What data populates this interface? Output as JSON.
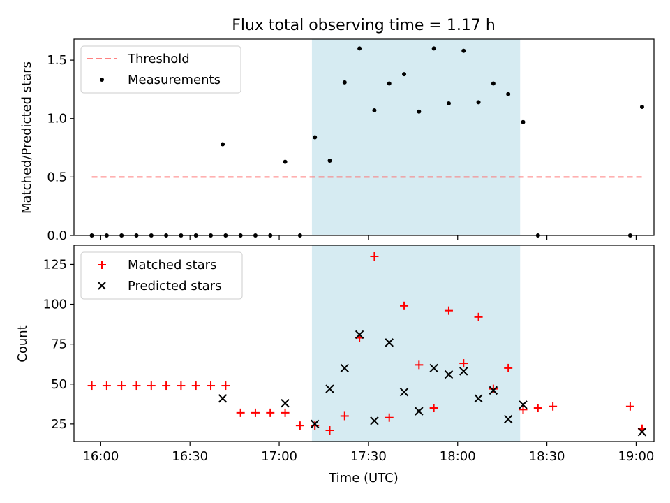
{
  "chart_data": [
    {
      "type": "scatter",
      "title": "Flux total observing time = 1.17 h",
      "ylabel": "Matched/Predicted stars",
      "xlabel": "",
      "xlim": [
        "15:51",
        "19:06"
      ],
      "ylim": [
        0,
        1.68
      ],
      "yticks": [
        0.0,
        0.5,
        1.0,
        1.5
      ],
      "ytick_labels": [
        "0.0",
        "0.5",
        "1.0",
        "1.5"
      ],
      "shaded_region": [
        "17:11",
        "18:21"
      ],
      "shaded_color": "#add8e6",
      "threshold": {
        "name": "Threshold",
        "y": 0.5,
        "x_from": "15:57",
        "x_to": "19:02",
        "color": "#ff6b6b"
      },
      "legend": {
        "position": "upper-left",
        "entries": [
          "Threshold",
          "Measurements"
        ]
      },
      "series": [
        {
          "name": "Measurements",
          "color": "#000000",
          "points": [
            [
              "15:57",
              0
            ],
            [
              "16:02",
              0
            ],
            [
              "16:07",
              0
            ],
            [
              "16:12",
              0
            ],
            [
              "16:17",
              0
            ],
            [
              "16:22",
              0
            ],
            [
              "16:27",
              0
            ],
            [
              "16:32",
              0
            ],
            [
              "16:37",
              0
            ],
            [
              "16:42",
              0
            ],
            [
              "16:47",
              0
            ],
            [
              "16:52",
              0
            ],
            [
              "16:41",
              0.78
            ],
            [
              "16:57",
              0
            ],
            [
              "17:02",
              0.63
            ],
            [
              "17:07",
              0
            ],
            [
              "17:12",
              0.84
            ],
            [
              "17:17",
              0.64
            ],
            [
              "17:22",
              1.31
            ],
            [
              "17:27",
              1.6
            ],
            [
              "17:32",
              1.07
            ],
            [
              "17:37",
              1.3
            ],
            [
              "17:42",
              1.38
            ],
            [
              "17:47",
              1.06
            ],
            [
              "17:52",
              1.6
            ],
            [
              "17:57",
              1.13
            ],
            [
              "18:02",
              1.58
            ],
            [
              "18:07",
              1.14
            ],
            [
              "18:12",
              1.3
            ],
            [
              "18:17",
              1.21
            ],
            [
              "18:22",
              0.97
            ],
            [
              "18:27",
              0
            ],
            [
              "18:58",
              0
            ],
            [
              "19:02",
              1.1
            ]
          ]
        }
      ]
    },
    {
      "type": "scatter",
      "title": "",
      "xlabel": "Time (UTC)",
      "ylabel": "Count",
      "xlim": [
        "15:51",
        "19:06"
      ],
      "ylim": [
        14,
        137
      ],
      "xticks": [
        "16:00",
        "16:30",
        "17:00",
        "17:30",
        "18:00",
        "18:30",
        "19:00"
      ],
      "yticks": [
        25,
        50,
        75,
        100,
        125
      ],
      "ytick_labels": [
        "25",
        "50",
        "75",
        "100",
        "125"
      ],
      "shaded_region": [
        "17:11",
        "18:21"
      ],
      "shaded_color": "#add8e6",
      "legend": {
        "position": "upper-left",
        "entries": [
          "Matched stars",
          "Predicted stars"
        ]
      },
      "series": [
        {
          "name": "Matched stars",
          "marker": "+",
          "color": "#ff0000",
          "points": [
            [
              "15:57",
              49
            ],
            [
              "16:02",
              49
            ],
            [
              "16:07",
              49
            ],
            [
              "16:12",
              49
            ],
            [
              "16:17",
              49
            ],
            [
              "16:22",
              49
            ],
            [
              "16:27",
              49
            ],
            [
              "16:32",
              49
            ],
            [
              "16:37",
              49
            ],
            [
              "16:42",
              49
            ],
            [
              "16:47",
              32
            ],
            [
              "16:52",
              32
            ],
            [
              "16:57",
              32
            ],
            [
              "17:02",
              32
            ],
            [
              "17:07",
              24
            ],
            [
              "17:12",
              24
            ],
            [
              "17:17",
              21
            ],
            [
              "17:22",
              30
            ],
            [
              "17:27",
              79
            ],
            [
              "17:32",
              130
            ],
            [
              "17:37",
              29
            ],
            [
              "17:42",
              99
            ],
            [
              "17:47",
              62
            ],
            [
              "17:52",
              35
            ],
            [
              "17:57",
              96
            ],
            [
              "18:02",
              63
            ],
            [
              "18:07",
              92
            ],
            [
              "18:12",
              47
            ],
            [
              "18:17",
              60
            ],
            [
              "18:22",
              34
            ],
            [
              "18:27",
              35
            ],
            [
              "18:32",
              36
            ],
            [
              "18:58",
              36
            ],
            [
              "19:02",
              22
            ]
          ]
        },
        {
          "name": "Predicted stars",
          "marker": "x",
          "color": "#000000",
          "points": [
            [
              "16:41",
              41
            ],
            [
              "17:02",
              38
            ],
            [
              "17:12",
              25
            ],
            [
              "17:17",
              47
            ],
            [
              "17:22",
              60
            ],
            [
              "17:27",
              81
            ],
            [
              "17:32",
              27
            ],
            [
              "17:37",
              76
            ],
            [
              "17:42",
              45
            ],
            [
              "17:47",
              33
            ],
            [
              "17:52",
              60
            ],
            [
              "17:57",
              56
            ],
            [
              "18:02",
              58
            ],
            [
              "18:07",
              41
            ],
            [
              "18:12",
              46
            ],
            [
              "18:17",
              28
            ],
            [
              "18:22",
              37
            ],
            [
              "19:02",
              20
            ]
          ]
        }
      ]
    }
  ]
}
